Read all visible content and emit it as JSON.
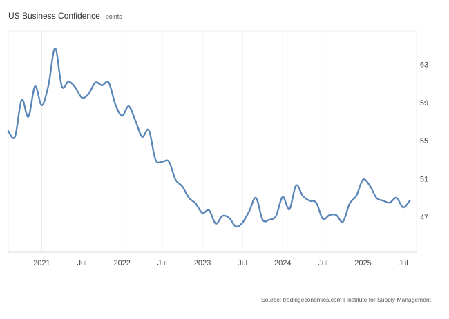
{
  "header": {
    "title": "US Business Confidence",
    "unit": " - points"
  },
  "footer": {
    "source": "Source: tradingeconomics.com | Institute for Supply Management"
  },
  "colors": {
    "line": "#5b87b8",
    "grid": "#ececec",
    "axis": "#d8d8d8"
  },
  "chart_data": {
    "type": "line",
    "title": "US Business Confidence",
    "unit": "points",
    "xlim": [
      "2020-08",
      "2025-09"
    ],
    "ylim": [
      43.3,
      66.5
    ],
    "y_ticks": [
      47,
      51,
      55,
      59,
      63
    ],
    "x_ticks": [
      {
        "label": "2021",
        "date": "2021-01"
      },
      {
        "label": "Jul",
        "date": "2021-07"
      },
      {
        "label": "2022",
        "date": "2022-01"
      },
      {
        "label": "Jul",
        "date": "2022-07"
      },
      {
        "label": "2023",
        "date": "2023-01"
      },
      {
        "label": "Jul",
        "date": "2023-07"
      },
      {
        "label": "2024",
        "date": "2024-01"
      },
      {
        "label": "Jul",
        "date": "2024-07"
      },
      {
        "label": "2025",
        "date": "2025-01"
      },
      {
        "label": "Jul",
        "date": "2025-07"
      }
    ],
    "grid": "vertical",
    "series": [
      {
        "x": [
          "2020-08",
          "2020-09",
          "2020-10",
          "2020-11",
          "2020-12",
          "2021-01",
          "2021-02",
          "2021-03",
          "2021-04",
          "2021-05",
          "2021-06",
          "2021-07",
          "2021-08",
          "2021-09",
          "2021-10",
          "2021-11",
          "2021-12",
          "2022-01",
          "2022-02",
          "2022-03",
          "2022-04",
          "2022-05",
          "2022-06",
          "2022-07",
          "2022-08",
          "2022-09",
          "2022-10",
          "2022-11",
          "2022-12",
          "2023-01",
          "2023-02",
          "2023-03",
          "2023-04",
          "2023-05",
          "2023-06",
          "2023-07",
          "2023-08",
          "2023-09",
          "2023-10",
          "2023-11",
          "2023-12",
          "2024-01",
          "2024-02",
          "2024-03",
          "2024-04",
          "2024-05",
          "2024-06",
          "2024-07",
          "2024-08",
          "2024-09",
          "2024-10",
          "2024-11",
          "2024-12",
          "2025-01",
          "2025-02",
          "2025-03",
          "2025-04",
          "2025-05",
          "2025-06",
          "2025-07",
          "2025-08"
        ],
        "values": [
          56.0,
          55.4,
          59.3,
          57.5,
          60.7,
          58.7,
          60.8,
          64.7,
          60.7,
          61.2,
          60.6,
          59.5,
          59.9,
          61.1,
          60.8,
          61.1,
          58.8,
          57.6,
          58.6,
          57.1,
          55.4,
          56.1,
          53.0,
          52.8,
          52.8,
          50.9,
          50.2,
          49.0,
          48.4,
          47.4,
          47.7,
          46.3,
          47.1,
          46.9,
          46.0,
          46.4,
          47.6,
          49.0,
          46.7,
          46.7,
          47.1,
          49.1,
          47.8,
          50.3,
          49.2,
          48.7,
          48.5,
          46.8,
          47.2,
          47.2,
          46.5,
          48.4,
          49.2,
          50.9,
          50.3,
          49.0,
          48.7,
          48.5,
          49.0,
          48.0,
          48.7
        ]
      }
    ]
  }
}
